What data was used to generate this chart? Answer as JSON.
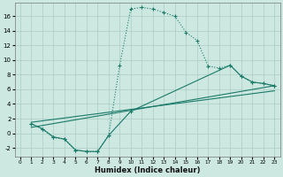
{
  "xlabel": "Humidex (Indice chaleur)",
  "background_color": "#cce8e0",
  "grid_color": "#aaccc4",
  "line_color": "#1a7a6a",
  "xlim": [
    -0.5,
    23.5
  ],
  "ylim": [
    -3.2,
    17.8
  ],
  "xticks": [
    0,
    1,
    2,
    3,
    4,
    5,
    6,
    7,
    8,
    9,
    10,
    11,
    12,
    13,
    14,
    15,
    16,
    17,
    18,
    19,
    20,
    21,
    22,
    23
  ],
  "yticks": [
    -2,
    0,
    2,
    4,
    6,
    8,
    10,
    12,
    14,
    16
  ],
  "curve1_x": [
    1,
    2,
    3,
    4,
    5,
    6,
    7,
    8,
    9,
    10,
    11,
    12,
    13,
    14,
    15,
    16,
    17,
    18,
    19,
    20,
    21,
    22,
    23
  ],
  "curve1_y": [
    1.3,
    0.6,
    -0.6,
    -0.8,
    -2.3,
    -2.5,
    -2.5,
    -0.3,
    9.3,
    17.0,
    17.2,
    17.0,
    16.5,
    16.0,
    13.8,
    12.7,
    9.2,
    8.9,
    9.3,
    7.8,
    7.0,
    6.8,
    6.5
  ],
  "curve2_x": [
    1,
    2,
    3,
    4,
    5,
    6,
    7,
    8,
    10,
    19,
    20,
    21,
    22,
    23
  ],
  "curve2_y": [
    1.3,
    0.6,
    -0.5,
    -0.8,
    -2.3,
    -2.5,
    -2.5,
    -0.3,
    3.0,
    9.3,
    7.8,
    7.0,
    6.8,
    6.5
  ],
  "curve3_x": [
    1,
    23
  ],
  "curve3_y": [
    0.8,
    6.5
  ],
  "curve4_x": [
    1,
    23
  ],
  "curve4_y": [
    1.5,
    5.8
  ]
}
